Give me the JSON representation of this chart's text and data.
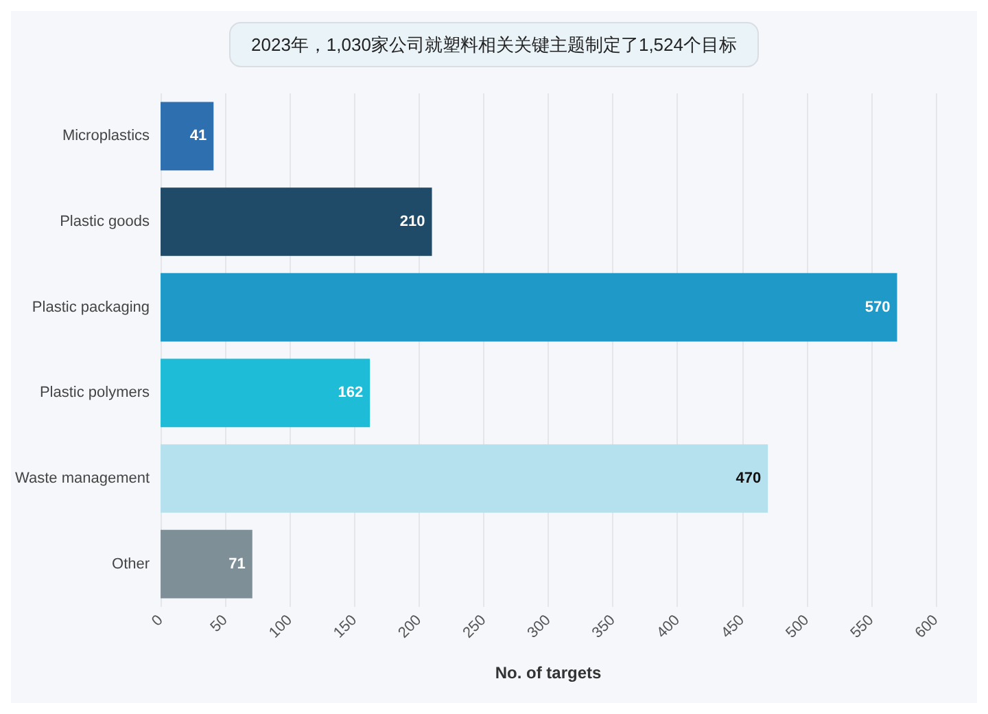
{
  "chart_data": {
    "type": "bar",
    "orientation": "horizontal",
    "title": "2023年，1,030家公司就塑料相关关键主题制定了1,524个目标",
    "xlabel": "No. of targets",
    "categories": [
      "Microplastics",
      "Plastic goods",
      "Plastic packaging",
      "Plastic polymers",
      "Waste management",
      "Other"
    ],
    "values": [
      41,
      210,
      570,
      162,
      470,
      71
    ],
    "colors": [
      "#2e6fb0",
      "#1f4a68",
      "#1e99c8",
      "#1ebcd6",
      "#b5e0ee",
      "#7f8f98"
    ],
    "xlim": [
      0,
      600
    ],
    "xticks": [
      0,
      50,
      100,
      150,
      200,
      250,
      300,
      350,
      400,
      450,
      500,
      550,
      600
    ],
    "grid": "x",
    "data_labels": true
  }
}
